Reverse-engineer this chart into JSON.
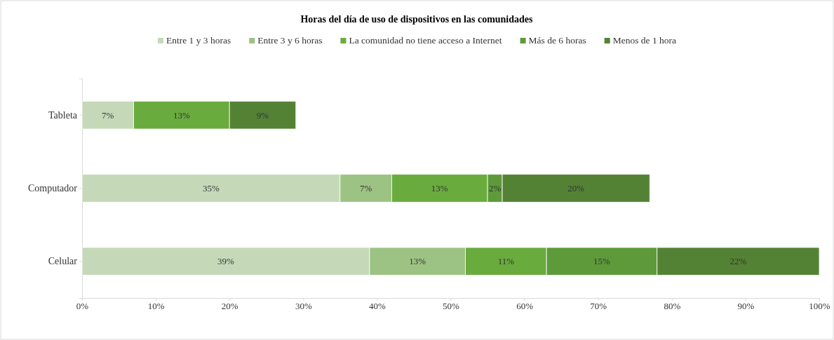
{
  "chart_data": {
    "type": "bar",
    "orientation": "horizontal",
    "stacked": true,
    "title": "Horas del día de uso de dispositivos en las comunidades",
    "categories": [
      "Tableta",
      "Computador",
      "Celular"
    ],
    "series": [
      {
        "name": "Entre 1 y 3 horas",
        "color": "#c5d9b9",
        "values": [
          7,
          35,
          39
        ],
        "value_labels": [
          "7%",
          "35%",
          "39%"
        ]
      },
      {
        "name": "Entre 3 y 6 horas",
        "color": "#9dc384",
        "values": [
          null,
          7,
          13
        ],
        "value_labels": [
          null,
          "7%",
          "13%"
        ]
      },
      {
        "name": "La comunidad no tiene acceso a Internet",
        "color": "#6aab3e",
        "values": [
          13,
          13,
          11
        ],
        "value_labels": [
          "13%",
          "13%",
          "11%"
        ]
      },
      {
        "name": "Más de 6 horas",
        "color": "#5e9a3a",
        "values": [
          null,
          2,
          15
        ],
        "value_labels": [
          null,
          "2%",
          "15%"
        ]
      },
      {
        "name": "Menos de 1 hora",
        "color": "#548235",
        "values": [
          9,
          20,
          22
        ],
        "value_labels": [
          "9%",
          "20%",
          "22%"
        ]
      }
    ],
    "xlim": [
      0,
      100
    ],
    "xticks": [
      {
        "value": 0,
        "label": "0%"
      },
      {
        "value": 10,
        "label": "10%"
      },
      {
        "value": 20,
        "label": "20%"
      },
      {
        "value": 30,
        "label": "30%"
      },
      {
        "value": 40,
        "label": "40%"
      },
      {
        "value": 50,
        "label": "50%"
      },
      {
        "value": 60,
        "label": "60%"
      },
      {
        "value": 70,
        "label": "70%"
      },
      {
        "value": 80,
        "label": "80%"
      },
      {
        "value": 90,
        "label": "90%"
      },
      {
        "value": 100,
        "label": "100%"
      }
    ],
    "grid": false,
    "legend": "top"
  }
}
